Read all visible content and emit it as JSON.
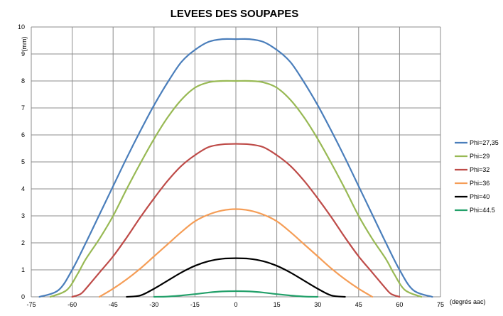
{
  "chart_data": {
    "type": "line",
    "title": "LEVEES DES SOUPAPES",
    "xlabel": "(degrés aac)",
    "ylabel": "(mm)",
    "xlim": [
      -75,
      75
    ],
    "ylim": [
      0,
      10
    ],
    "xticks": [
      -75,
      -60,
      -45,
      -30,
      -15,
      0,
      15,
      30,
      45,
      60,
      75
    ],
    "yticks": [
      0,
      1,
      2,
      3,
      4,
      5,
      6,
      7,
      8,
      9,
      10
    ],
    "grid": true,
    "legend_position": "right",
    "series": [
      {
        "name": "Phi=27,35",
        "color": "#4a7ebb",
        "x": [
          -72,
          -65,
          -60,
          -55,
          -50,
          -45,
          -40,
          -35,
          -30,
          -25,
          -20,
          -15,
          -10,
          -5,
          0,
          5,
          10,
          15,
          20,
          25,
          30,
          35,
          40,
          45,
          50,
          55,
          60,
          65,
          72
        ],
        "y": [
          0,
          0.25,
          1.0,
          2.0,
          3.05,
          4.1,
          5.15,
          6.15,
          7.1,
          7.95,
          8.7,
          9.15,
          9.45,
          9.55,
          9.55,
          9.55,
          9.45,
          9.15,
          8.7,
          7.95,
          7.1,
          6.15,
          5.15,
          4.1,
          3.05,
          2.0,
          1.0,
          0.25,
          0
        ]
      },
      {
        "name": "Phi=29",
        "color": "#98b954",
        "x": [
          -68,
          -62,
          -58,
          -55,
          -50,
          -45,
          -40,
          -35,
          -30,
          -25,
          -20,
          -15,
          -10,
          -5,
          0,
          5,
          10,
          15,
          20,
          25,
          30,
          35,
          40,
          45,
          50,
          55,
          58,
          62,
          68
        ],
        "y": [
          0,
          0.25,
          0.85,
          1.4,
          2.15,
          3.0,
          4.0,
          4.95,
          5.85,
          6.65,
          7.3,
          7.75,
          7.95,
          8.0,
          8.0,
          8.0,
          7.95,
          7.75,
          7.3,
          6.65,
          5.85,
          4.95,
          4.0,
          3.0,
          2.15,
          1.4,
          0.85,
          0.25,
          0
        ]
      },
      {
        "name": "Phi=32",
        "color": "#be4b48",
        "x": [
          -60,
          -57,
          -55,
          -50,
          -45,
          -40,
          -35,
          -30,
          -25,
          -20,
          -15,
          -10,
          -5,
          0,
          5,
          10,
          15,
          20,
          25,
          30,
          35,
          40,
          45,
          50,
          55,
          57,
          60
        ],
        "y": [
          0,
          0.1,
          0.3,
          0.9,
          1.5,
          2.2,
          2.95,
          3.65,
          4.3,
          4.85,
          5.25,
          5.55,
          5.65,
          5.67,
          5.65,
          5.55,
          5.25,
          4.85,
          4.3,
          3.65,
          2.95,
          2.2,
          1.5,
          0.9,
          0.3,
          0.1,
          0
        ]
      },
      {
        "name": "Phi=36",
        "color": "#f59d56",
        "x": [
          -50,
          -45,
          -40,
          -35,
          -30,
          -25,
          -20,
          -15,
          -10,
          -5,
          0,
          5,
          10,
          15,
          20,
          25,
          30,
          35,
          40,
          45,
          50
        ],
        "y": [
          0,
          0.3,
          0.65,
          1.05,
          1.5,
          1.95,
          2.4,
          2.8,
          3.05,
          3.2,
          3.25,
          3.2,
          3.05,
          2.8,
          2.4,
          1.95,
          1.5,
          1.05,
          0.65,
          0.3,
          0
        ]
      },
      {
        "name": "Phi=40",
        "color": "#000000",
        "x": [
          -40,
          -35,
          -30,
          -25,
          -20,
          -15,
          -10,
          -5,
          0,
          5,
          10,
          15,
          20,
          25,
          30,
          35,
          40
        ],
        "y": [
          0,
          0.05,
          0.3,
          0.6,
          0.9,
          1.15,
          1.32,
          1.41,
          1.43,
          1.41,
          1.32,
          1.15,
          0.9,
          0.6,
          0.3,
          0.05,
          0
        ]
      },
      {
        "name": "Phi=44.5",
        "color": "#23a06a",
        "x": [
          -30,
          -25,
          -20,
          -15,
          -10,
          -5,
          0,
          5,
          10,
          15,
          20,
          25,
          30
        ],
        "y": [
          0,
          0.01,
          0.05,
          0.1,
          0.16,
          0.2,
          0.21,
          0.2,
          0.16,
          0.1,
          0.05,
          0.01,
          0
        ]
      }
    ]
  }
}
